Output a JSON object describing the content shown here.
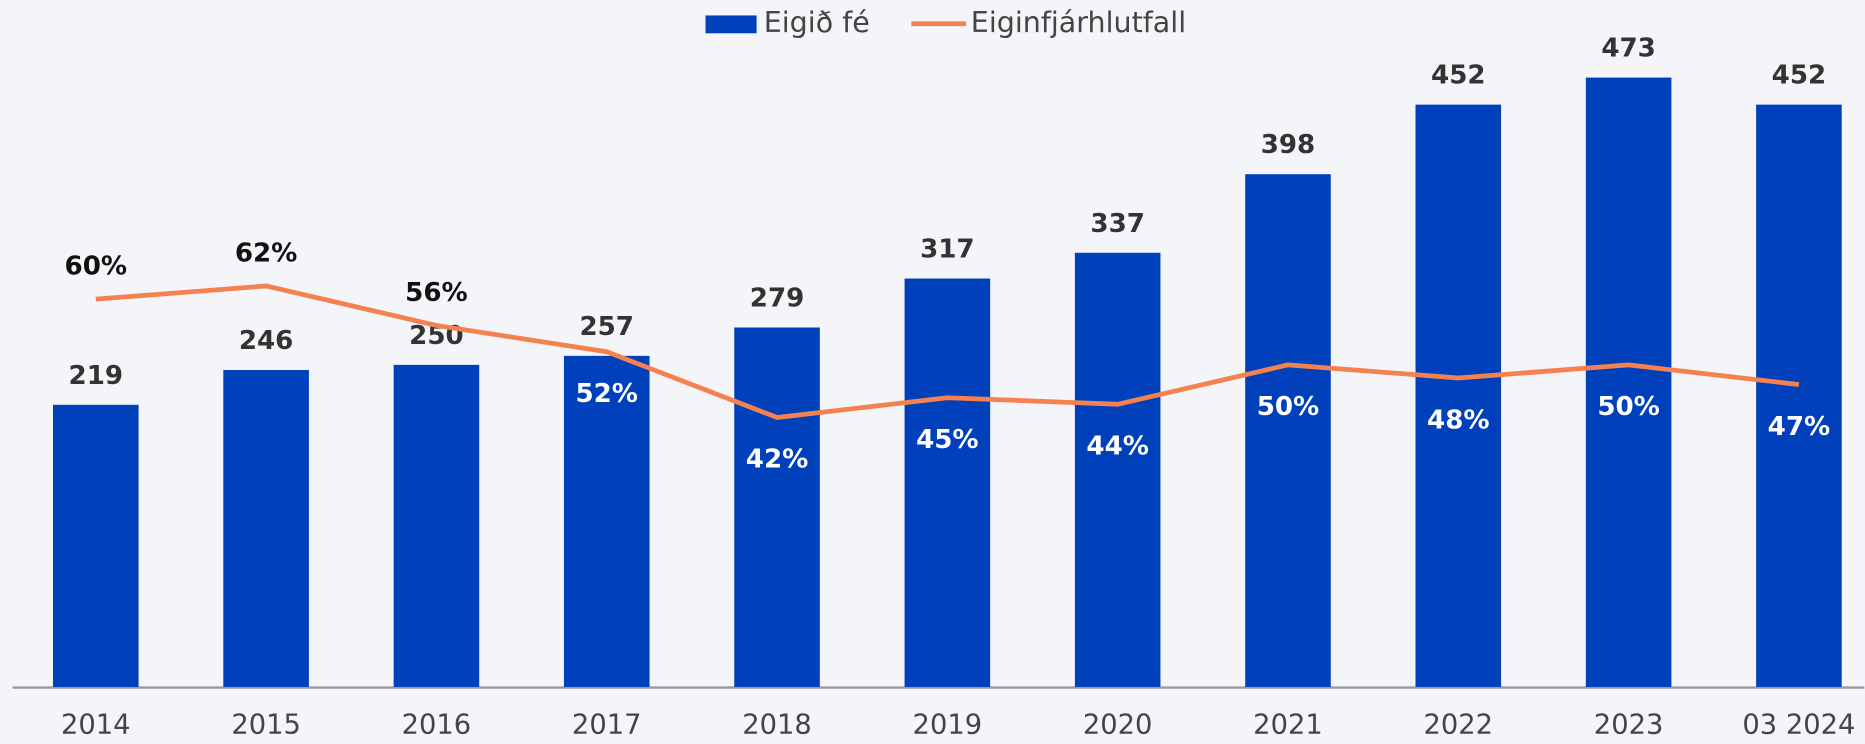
{
  "chart_data": {
    "type": "combo",
    "categories": [
      "2014",
      "2015",
      "2016",
      "2017",
      "2018",
      "2019",
      "2020",
      "2021",
      "2022",
      "2023",
      "03 2024"
    ],
    "series": [
      {
        "name": "Eigið fé",
        "type": "bar",
        "color": "#0040bb",
        "values": [
          219,
          246,
          250,
          257,
          279,
          317,
          337,
          398,
          452,
          473,
          452
        ]
      },
      {
        "name": "Eiginfjárhlutfall",
        "type": "line",
        "color": "#f58150",
        "axis": "y2",
        "values": [
          60,
          62,
          56,
          52,
          42,
          45,
          44,
          50,
          48,
          50,
          47
        ],
        "value_labels": [
          "60%",
          "62%",
          "56%",
          "52%",
          "42%",
          "45%",
          "44%",
          "50%",
          "48%",
          "50%",
          "47%"
        ]
      }
    ],
    "ylim": [
      0,
      500
    ],
    "y2lim": [
      1,
      99
    ],
    "legend": "top"
  }
}
